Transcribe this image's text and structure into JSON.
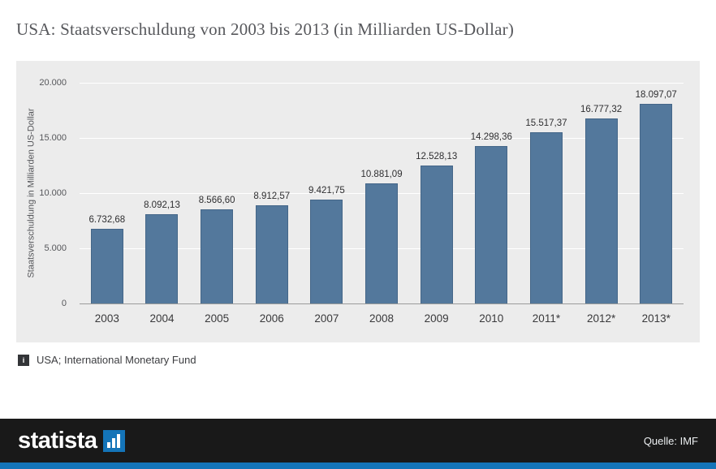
{
  "title": "USA: Staatsverschuldung von 2003 bis 2013 (in Milliarden US-Dollar)",
  "chart_data": {
    "type": "bar",
    "title": "USA: Staatsverschuldung von 2003 bis 2013 (in Milliarden US-Dollar)",
    "categories": [
      "2003",
      "2004",
      "2005",
      "2006",
      "2007",
      "2008",
      "2009",
      "2010",
      "2011*",
      "2012*",
      "2013*"
    ],
    "values": [
      6732.68,
      8092.13,
      8566.6,
      8912.57,
      9421.75,
      10881.09,
      12528.13,
      14298.36,
      15517.37,
      16777.32,
      18097.07
    ],
    "value_labels": [
      "6.732,68",
      "8.092,13",
      "8.566,60",
      "8.912,57",
      "9.421,75",
      "10.881,09",
      "12.528,13",
      "14.298,36",
      "15.517,37",
      "16.777,32",
      "18.097,07"
    ],
    "xlabel": "",
    "ylabel": "Staatsverschuldung in Milliarden US-Dollar",
    "ytick_labels": [
      "20.000",
      "15.000",
      "10.000",
      "5.000",
      "0"
    ],
    "ylim": [
      0,
      20000
    ],
    "grid": "horizontal",
    "legend": "none",
    "bar_color": "#53789c",
    "plot_background": "#ececec"
  },
  "footer": {
    "info_icon": "i",
    "note": "USA; International Monetary Fund"
  },
  "bottombar": {
    "logo_text": "statista",
    "source_label": "Quelle: IMF",
    "bar_color": "#191919",
    "accent_color": "#1474b8"
  }
}
